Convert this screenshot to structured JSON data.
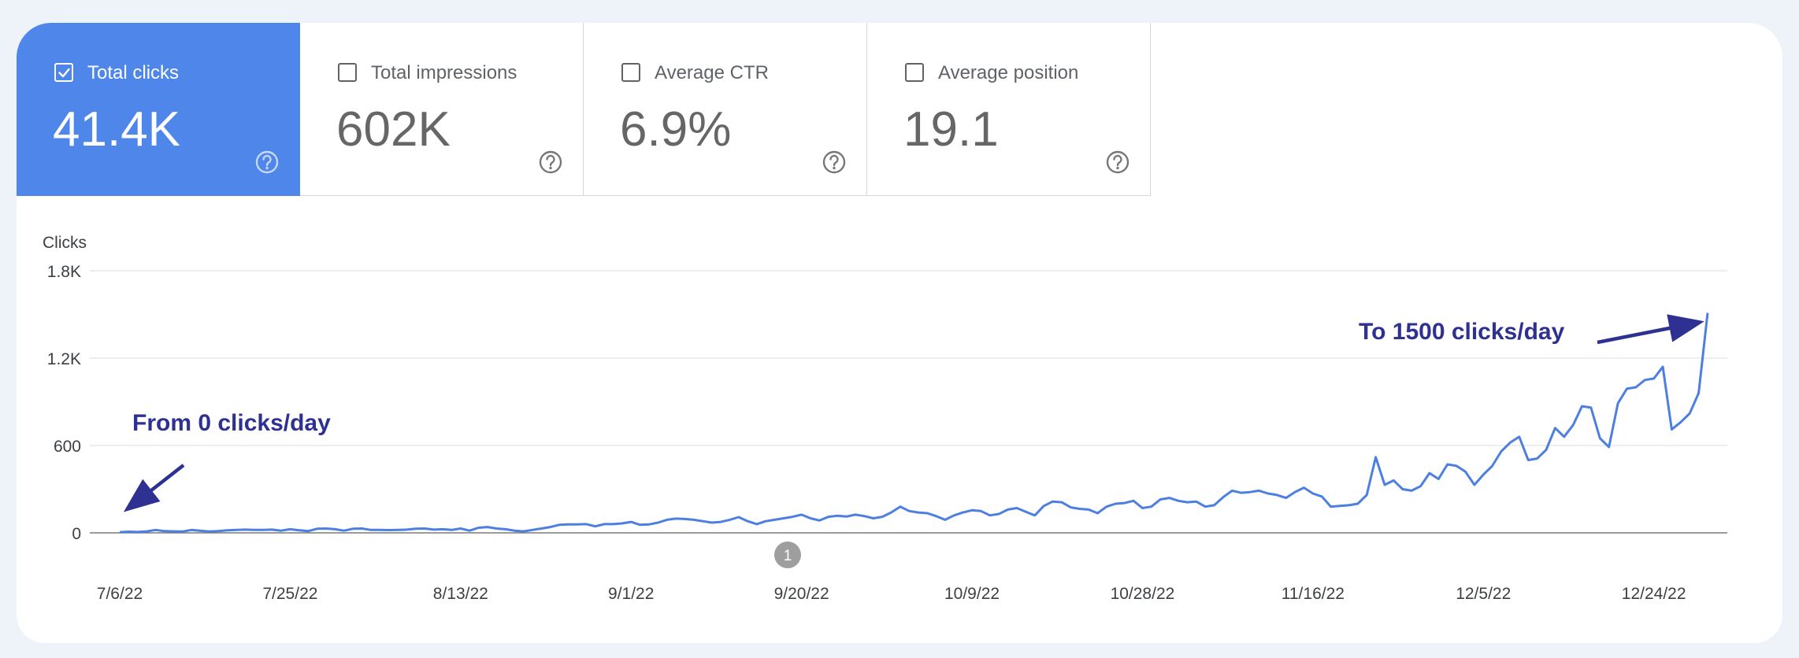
{
  "metrics": [
    {
      "label": "Total clicks",
      "value": "41.4K",
      "checked": true
    },
    {
      "label": "Total impressions",
      "value": "602K",
      "checked": false
    },
    {
      "label": "Average CTR",
      "value": "6.9%",
      "checked": false
    },
    {
      "label": "Average position",
      "value": "19.1",
      "checked": false
    }
  ],
  "icons": {
    "checkbox": "checkbox-icon",
    "help": "help-circle-icon",
    "annotation": "annotation-marker"
  },
  "colors": {
    "active_tab": "#4f86ea",
    "line": "#4c7fe0",
    "annotation_text": "#2e3192",
    "grid": "#e4e4e4"
  },
  "annotations": {
    "left": "From 0 clicks/day",
    "right": "To 1500 clicks/day",
    "marker": "1"
  },
  "chart_data": {
    "type": "line",
    "ylabel": "Clicks",
    "xlabel": "",
    "ylim": [
      0,
      1800
    ],
    "y_ticks": [
      "0",
      "600",
      "1.2K",
      "1.8K"
    ],
    "x_tick_labels": [
      "7/6/22",
      "7/25/22",
      "8/13/22",
      "9/1/22",
      "9/20/22",
      "10/9/22",
      "10/28/22",
      "11/16/22",
      "12/5/22",
      "12/24/22"
    ],
    "grid": true,
    "series": [
      {
        "values": [
          5,
          8,
          6,
          10,
          20,
          12,
          10,
          9,
          20,
          14,
          9,
          12,
          18,
          20,
          22,
          20,
          20,
          22,
          15,
          25,
          18,
          12,
          28,
          30,
          25,
          15,
          28,
          30,
          20,
          20,
          19,
          20,
          22,
          28,
          30,
          22,
          25,
          20,
          30,
          15,
          35,
          40,
          30,
          25,
          15,
          10,
          20,
          30,
          40,
          55,
          58,
          58,
          60,
          45,
          60,
          60,
          65,
          75,
          55,
          58,
          70,
          90,
          98,
          95,
          90,
          80,
          70,
          75,
          90,
          108,
          80,
          60,
          80,
          90,
          100,
          110,
          125,
          100,
          85,
          110,
          118,
          112,
          125,
          115,
          100,
          110,
          140,
          180,
          150,
          140,
          135,
          115,
          90,
          120,
          140,
          155,
          150,
          120,
          130,
          160,
          170,
          145,
          120,
          185,
          215,
          210,
          175,
          165,
          160,
          135,
          180,
          200,
          205,
          220,
          170,
          180,
          230,
          240,
          220,
          210,
          215,
          180,
          190,
          245,
          290,
          275,
          280,
          290,
          270,
          260,
          240,
          280,
          310,
          270,
          250,
          180,
          185,
          190,
          200,
          260,
          520,
          330,
          360,
          300,
          290,
          320,
          410,
          370,
          470,
          460,
          420,
          330,
          400,
          460,
          560,
          620,
          660,
          500,
          510,
          570,
          720,
          660,
          740,
          870,
          860,
          650,
          590,
          890,
          990,
          1000,
          1050,
          1060,
          1140,
          710,
          760,
          820,
          960,
          1510
        ]
      }
    ]
  }
}
